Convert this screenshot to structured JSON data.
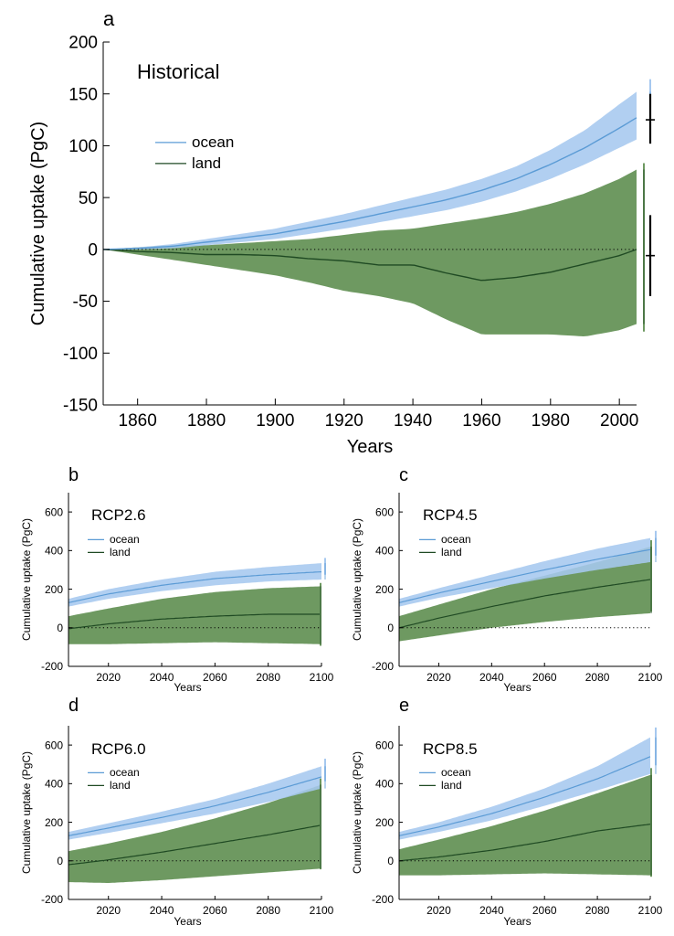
{
  "figure": {
    "ocean_color": "#5b9bd5",
    "ocean_band_color": "#a6c8ef",
    "land_color": "#1f4a23",
    "land_band_color": "#6e9961",
    "bar_color": "#000000"
  },
  "chart_data": [
    {
      "panel": "a",
      "type": "area",
      "title": "Historical",
      "xlabel": "Years",
      "ylabel": "Cumulative uptake (PgC)",
      "xlim": [
        1850,
        2005
      ],
      "ylim": [
        -150,
        200
      ],
      "xticks": [
        1860,
        1880,
        1900,
        1920,
        1940,
        1960,
        1980,
        2000
      ],
      "yticks": [
        -150,
        -100,
        -50,
        0,
        50,
        100,
        150,
        200
      ],
      "zero_line": "dotted",
      "legend": "upper-left",
      "series": [
        {
          "name": "ocean",
          "x": [
            1850,
            1860,
            1870,
            1880,
            1890,
            1900,
            1910,
            1920,
            1930,
            1940,
            1950,
            1960,
            1970,
            1980,
            1990,
            2000,
            2005
          ],
          "mean": [
            0,
            1,
            3,
            7,
            11,
            15,
            21,
            27,
            34,
            41,
            48,
            57,
            68,
            82,
            98,
            117,
            127
          ],
          "upper": [
            0,
            2,
            5,
            10,
            15,
            20,
            27,
            34,
            42,
            50,
            58,
            68,
            80,
            96,
            115,
            140,
            152
          ],
          "lower": [
            0,
            0,
            1,
            4,
            7,
            10,
            15,
            20,
            26,
            32,
            38,
            46,
            56,
            68,
            82,
            98,
            106
          ]
        },
        {
          "name": "land",
          "x": [
            1850,
            1860,
            1870,
            1880,
            1890,
            1900,
            1910,
            1920,
            1930,
            1940,
            1950,
            1960,
            1970,
            1980,
            1990,
            2000,
            2005
          ],
          "mean": [
            0,
            -2,
            -3,
            -5,
            -5,
            -6,
            -9,
            -11,
            -15,
            -15,
            -23,
            -30,
            -27,
            -22,
            -14,
            -6,
            0
          ],
          "upper": [
            0,
            2,
            4,
            4,
            6,
            8,
            10,
            14,
            18,
            20,
            25,
            30,
            36,
            44,
            54,
            68,
            77
          ],
          "lower": [
            0,
            -5,
            -10,
            -15,
            -20,
            -25,
            -32,
            -40,
            -45,
            -52,
            -68,
            -82,
            -82,
            -82,
            -84,
            -78,
            -72
          ]
        }
      ],
      "side_bars": [
        {
          "name": "ocean",
          "center": 125,
          "low": 102,
          "high": 150
        },
        {
          "name": "land",
          "center": -6,
          "low": -45,
          "high": 33
        }
      ]
    },
    {
      "panel": "b",
      "type": "area",
      "title": "RCP2.6",
      "xlabel": "Years",
      "ylabel": "Cumulative uptake (PgC)",
      "xlim": [
        2005,
        2100
      ],
      "ylim": [
        -200,
        700
      ],
      "xticks": [
        2020,
        2040,
        2060,
        2080,
        2100
      ],
      "yticks": [
        -200,
        0,
        200,
        400,
        600
      ],
      "zero_line": "dotted",
      "legend": "upper-left",
      "series": [
        {
          "name": "ocean",
          "x": [
            2005,
            2020,
            2040,
            2060,
            2080,
            2100
          ],
          "mean": [
            130,
            175,
            220,
            255,
            275,
            290
          ],
          "upper": [
            150,
            200,
            250,
            290,
            315,
            335
          ],
          "lower": [
            110,
            150,
            190,
            220,
            240,
            250
          ]
        },
        {
          "name": "land",
          "x": [
            2005,
            2020,
            2040,
            2060,
            2080,
            2100
          ],
          "mean": [
            -5,
            20,
            45,
            60,
            70,
            70
          ],
          "upper": [
            60,
            100,
            150,
            185,
            205,
            215
          ],
          "lower": [
            -85,
            -85,
            -80,
            -75,
            -80,
            -85
          ]
        }
      ]
    },
    {
      "panel": "c",
      "type": "area",
      "title": "RCP4.5",
      "xlabel": "Years",
      "ylabel": "Cumulative uptake (PgC)",
      "xlim": [
        2005,
        2100
      ],
      "ylim": [
        -200,
        700
      ],
      "xticks": [
        2020,
        2040,
        2060,
        2080,
        2100
      ],
      "yticks": [
        -200,
        0,
        200,
        400,
        600
      ],
      "zero_line": "dotted",
      "legend": "upper-left",
      "series": [
        {
          "name": "ocean",
          "x": [
            2005,
            2020,
            2040,
            2060,
            2080,
            2100
          ],
          "mean": [
            130,
            180,
            240,
            300,
            355,
            405
          ],
          "upper": [
            150,
            205,
            275,
            345,
            410,
            465
          ],
          "lower": [
            110,
            155,
            205,
            255,
            300,
            340
          ]
        },
        {
          "name": "land",
          "x": [
            2005,
            2020,
            2040,
            2060,
            2080,
            2100
          ],
          "mean": [
            0,
            50,
            110,
            165,
            210,
            250
          ],
          "upper": [
            60,
            120,
            200,
            270,
            340,
            420
          ],
          "lower": [
            -70,
            -40,
            0,
            30,
            55,
            75
          ]
        }
      ]
    },
    {
      "panel": "d",
      "type": "area",
      "title": "RCP6.0",
      "xlabel": "Years",
      "ylabel": "Cumulative uptake (PgC)",
      "xlim": [
        2005,
        2100
      ],
      "ylim": [
        -200,
        700
      ],
      "xticks": [
        2020,
        2040,
        2060,
        2080,
        2100
      ],
      "yticks": [
        -200,
        0,
        200,
        400,
        600
      ],
      "zero_line": "dotted",
      "legend": "upper-left",
      "series": [
        {
          "name": "ocean",
          "x": [
            2005,
            2020,
            2040,
            2060,
            2080,
            2100
          ],
          "mean": [
            130,
            170,
            225,
            285,
            355,
            435
          ],
          "upper": [
            150,
            195,
            255,
            320,
            400,
            490
          ],
          "lower": [
            110,
            145,
            195,
            245,
            305,
            375
          ]
        },
        {
          "name": "land",
          "x": [
            2005,
            2020,
            2040,
            2060,
            2080,
            2100
          ],
          "mean": [
            -20,
            5,
            45,
            90,
            135,
            185
          ],
          "upper": [
            50,
            90,
            150,
            220,
            300,
            395
          ],
          "lower": [
            -110,
            -115,
            -100,
            -80,
            -60,
            -40
          ]
        }
      ]
    },
    {
      "panel": "e",
      "type": "area",
      "title": "RCP8.5",
      "xlabel": "Years",
      "ylabel": "Cumulative uptake (PgC)",
      "xlim": [
        2005,
        2100
      ],
      "ylim": [
        -200,
        700
      ],
      "xticks": [
        2020,
        2040,
        2060,
        2080,
        2100
      ],
      "yticks": [
        -200,
        0,
        200,
        400,
        600
      ],
      "zero_line": "dotted",
      "legend": "upper-left",
      "series": [
        {
          "name": "ocean",
          "x": [
            2005,
            2020,
            2040,
            2060,
            2080,
            2100
          ],
          "mean": [
            130,
            175,
            245,
            330,
            425,
            540
          ],
          "upper": [
            150,
            200,
            280,
            375,
            490,
            640
          ],
          "lower": [
            110,
            150,
            210,
            285,
            365,
            450
          ]
        },
        {
          "name": "land",
          "x": [
            2005,
            2020,
            2040,
            2060,
            2080,
            2100
          ],
          "mean": [
            0,
            20,
            55,
            100,
            155,
            190
          ],
          "upper": [
            60,
            110,
            180,
            260,
            350,
            445
          ],
          "lower": [
            -75,
            -75,
            -70,
            -65,
            -70,
            -75
          ]
        }
      ]
    }
  ]
}
